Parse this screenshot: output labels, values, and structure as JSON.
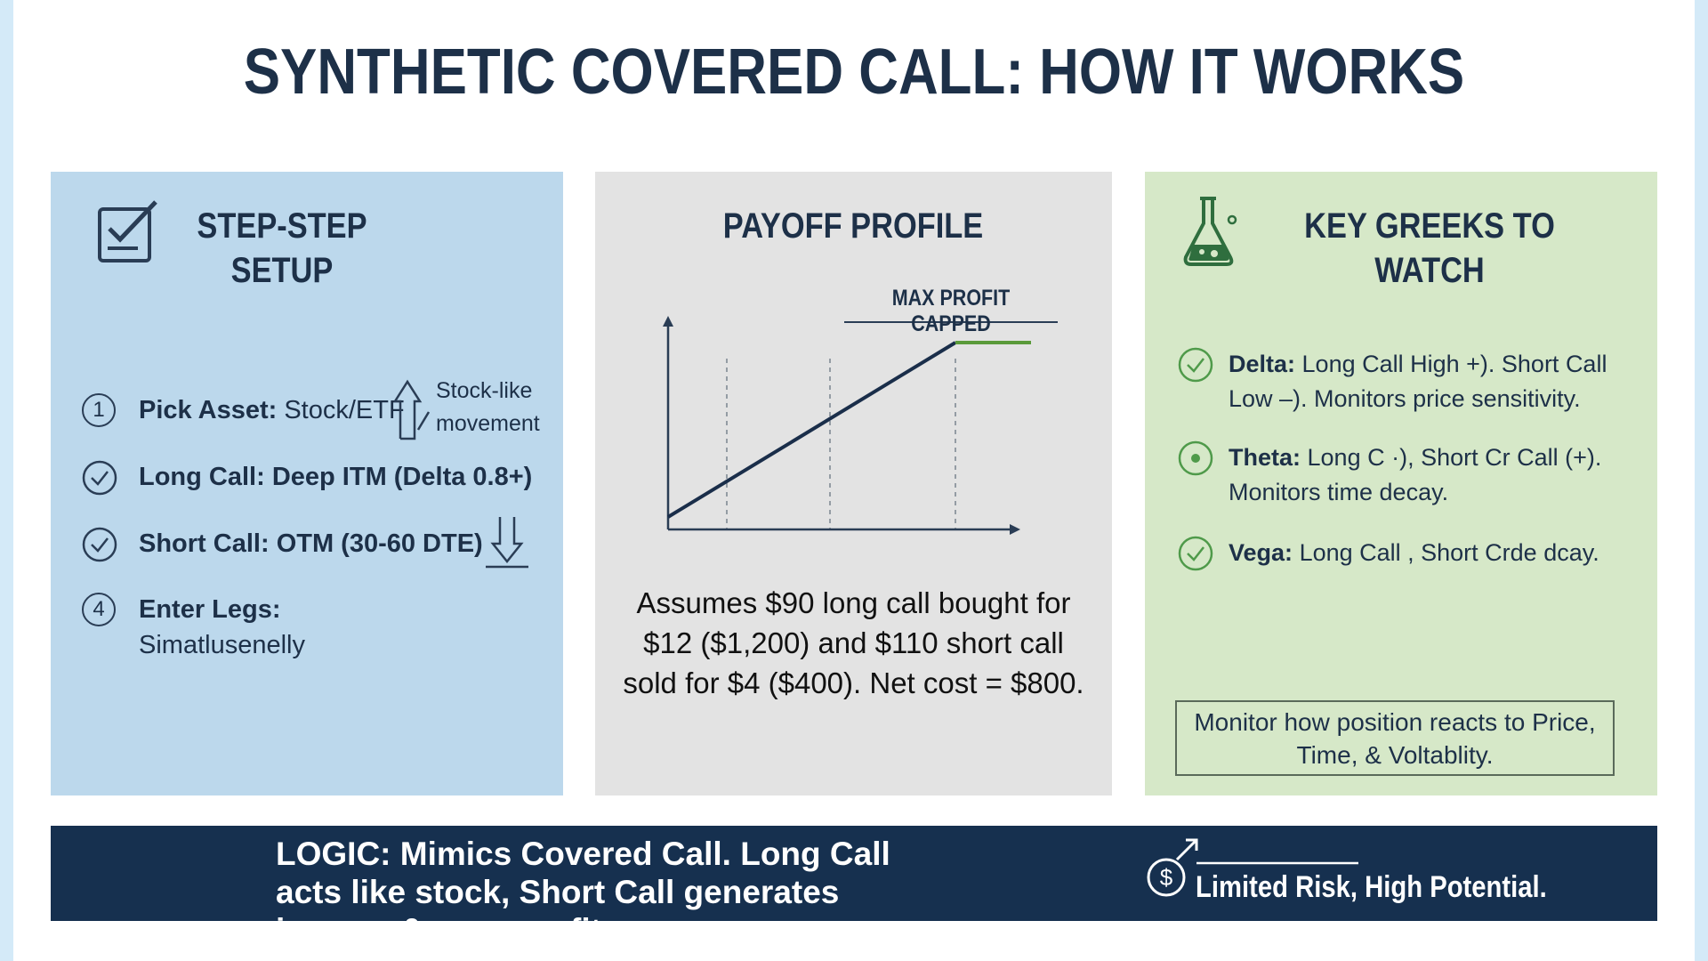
{
  "title": "SYNTHETIC COVERED CALL: HOW IT WORKS",
  "setup": {
    "title": "STEP-STEP SETUP",
    "steps": [
      {
        "marker": "1",
        "label": "Pick Asset:",
        "text": "Stock/ETF",
        "note": "Stock-like movement"
      },
      {
        "label": "Long Call:",
        "text": "Deep ITM (Delta 0.8+)"
      },
      {
        "label": "Short Call:",
        "text": "OTM (30-60 DTE)"
      },
      {
        "marker": "4",
        "label": "Enter Legs:",
        "text": "Simatlusenelly"
      }
    ]
  },
  "payoff": {
    "title": "PAYOFF PROFILE",
    "annotation": "MAX PROFIT CAPPED",
    "caption": "Assumes $90 long call bought for $12 ($1,200) and $110 short call sold for $4 ($400). Net cost = $800."
  },
  "greeks": {
    "title": "KEY GREEKS TO WATCH",
    "items": [
      {
        "label": "Delta:",
        "text": "Long Call High +). Short Call Low –). Monitors price sensitivity."
      },
      {
        "label": "Theta:",
        "text": "Long C ·), Short Cr Call (+). Monitors time decay."
      },
      {
        "label": "Vega:",
        "text": "Long Call , Short Crde dcay."
      }
    ],
    "note": "Monitor how position reacts to Price, Time, & Voltablity."
  },
  "footer": {
    "logic": "LOGIC: Mimics Covered Call. Long Call acts like stock, Short Call generates income & caps profit.",
    "tagline": "Limited Risk, High Potential."
  }
}
